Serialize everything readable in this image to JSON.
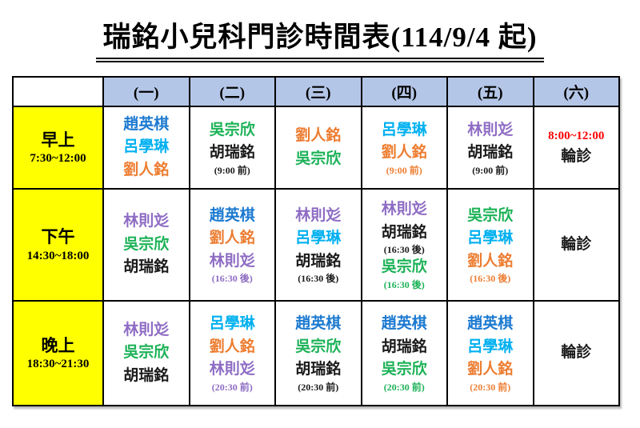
{
  "title": "瑞銘小兒科門診時間表(114/9/4 起)",
  "colors": {
    "blue": "#1B79D0",
    "cyan": "#00B0F0",
    "orange": "#ED7D31",
    "green": "#1CB257",
    "purple": "#8E6CC4",
    "black": "#1A1A1A",
    "red": "#FF0000",
    "header_bg": "#B4C6E7",
    "label_bg": "#FFFF00"
  },
  "header": {
    "days": [
      "(一)",
      "(二)",
      "(三)",
      "(四)",
      "(五)",
      "(六)"
    ]
  },
  "rows": [
    {
      "label": "早上",
      "time": "7:30~12:00",
      "cells": [
        {
          "lines": [
            {
              "text": "趙英棋",
              "color": "blue",
              "kind": "name"
            },
            {
              "text": "呂學琳",
              "color": "cyan",
              "kind": "name"
            },
            {
              "text": "劉人銘",
              "color": "orange",
              "kind": "name"
            }
          ]
        },
        {
          "lines": [
            {
              "text": "吳宗欣",
              "color": "green",
              "kind": "name"
            },
            {
              "text": "胡瑞銘",
              "color": "black",
              "kind": "name"
            },
            {
              "text": "(9:00 前)",
              "color": "black",
              "kind": "note"
            }
          ]
        },
        {
          "lines": [
            {
              "text": "劉人銘",
              "color": "orange",
              "kind": "name"
            },
            {
              "text": "吳宗欣",
              "color": "green",
              "kind": "name"
            }
          ]
        },
        {
          "lines": [
            {
              "text": "呂學琳",
              "color": "cyan",
              "kind": "name"
            },
            {
              "text": "劉人銘",
              "color": "orange",
              "kind": "name"
            },
            {
              "text": "(9:00 前)",
              "color": "orange",
              "kind": "note"
            }
          ]
        },
        {
          "lines": [
            {
              "text": "林則彣",
              "color": "purple",
              "kind": "name"
            },
            {
              "text": "胡瑞銘",
              "color": "black",
              "kind": "name"
            },
            {
              "text": "(9:00 前)",
              "color": "black",
              "kind": "note"
            }
          ]
        },
        {
          "lines": [
            {
              "text": "8:00~12:00",
              "color": "red",
              "kind": "time"
            },
            {
              "text": "輪診",
              "color": "black",
              "kind": "name"
            }
          ]
        }
      ]
    },
    {
      "label": "下午",
      "time": "14:30~18:00",
      "cells": [
        {
          "lines": [
            {
              "text": "林則彣",
              "color": "purple",
              "kind": "name"
            },
            {
              "text": "吳宗欣",
              "color": "green",
              "kind": "name"
            },
            {
              "text": "胡瑞銘",
              "color": "black",
              "kind": "name"
            }
          ]
        },
        {
          "lines": [
            {
              "text": "趙英棋",
              "color": "blue",
              "kind": "name"
            },
            {
              "text": "劉人銘",
              "color": "orange",
              "kind": "name"
            },
            {
              "text": "林則彣",
              "color": "purple",
              "kind": "name"
            },
            {
              "text": "(16:30 後)",
              "color": "purple",
              "kind": "note"
            }
          ]
        },
        {
          "lines": [
            {
              "text": "林則彣",
              "color": "purple",
              "kind": "name"
            },
            {
              "text": "呂學琳",
              "color": "cyan",
              "kind": "name"
            },
            {
              "text": "胡瑞銘",
              "color": "black",
              "kind": "name"
            },
            {
              "text": "(16:30 後)",
              "color": "black",
              "kind": "note"
            }
          ]
        },
        {
          "lines": [
            {
              "text": "林則彣",
              "color": "purple",
              "kind": "name"
            },
            {
              "text": "胡瑞銘",
              "color": "black",
              "kind": "name"
            },
            {
              "text": "(16:30 後)",
              "color": "black",
              "kind": "note"
            },
            {
              "text": "吳宗欣",
              "color": "green",
              "kind": "name"
            },
            {
              "text": "(16:30 後)",
              "color": "green",
              "kind": "note"
            }
          ]
        },
        {
          "lines": [
            {
              "text": "吳宗欣",
              "color": "green",
              "kind": "name"
            },
            {
              "text": "呂學琳",
              "color": "cyan",
              "kind": "name"
            },
            {
              "text": "劉人銘",
              "color": "orange",
              "kind": "name"
            },
            {
              "text": "(16:30 後)",
              "color": "orange",
              "kind": "note"
            }
          ]
        },
        {
          "lines": [
            {
              "text": "輪診",
              "color": "black",
              "kind": "name"
            }
          ]
        }
      ]
    },
    {
      "label": "晚上",
      "time": "18:30~21:30",
      "cells": [
        {
          "lines": [
            {
              "text": "林則彣",
              "color": "purple",
              "kind": "name"
            },
            {
              "text": "吳宗欣",
              "color": "green",
              "kind": "name"
            },
            {
              "text": "胡瑞銘",
              "color": "black",
              "kind": "name"
            }
          ]
        },
        {
          "lines": [
            {
              "text": "呂學琳",
              "color": "cyan",
              "kind": "name"
            },
            {
              "text": "劉人銘",
              "color": "orange",
              "kind": "name"
            },
            {
              "text": "林則彣",
              "color": "purple",
              "kind": "name"
            },
            {
              "text": "(20:30 前)",
              "color": "purple",
              "kind": "note"
            }
          ]
        },
        {
          "lines": [
            {
              "text": "趙英棋",
              "color": "blue",
              "kind": "name"
            },
            {
              "text": "吳宗欣",
              "color": "green",
              "kind": "name"
            },
            {
              "text": "胡瑞銘",
              "color": "black",
              "kind": "name"
            },
            {
              "text": "(20:30 前)",
              "color": "black",
              "kind": "note"
            }
          ]
        },
        {
          "lines": [
            {
              "text": "趙英棋",
              "color": "blue",
              "kind": "name"
            },
            {
              "text": "胡瑞銘",
              "color": "black",
              "kind": "name"
            },
            {
              "text": "吳宗欣",
              "color": "green",
              "kind": "name"
            },
            {
              "text": "(20:30 前)",
              "color": "green",
              "kind": "note"
            }
          ]
        },
        {
          "lines": [
            {
              "text": "趙英棋",
              "color": "blue",
              "kind": "name"
            },
            {
              "text": "呂學琳",
              "color": "cyan",
              "kind": "name"
            },
            {
              "text": "劉人銘",
              "color": "orange",
              "kind": "name"
            },
            {
              "text": "(20:30 前)",
              "color": "orange",
              "kind": "note"
            }
          ]
        },
        {
          "lines": [
            {
              "text": "輪診",
              "color": "black",
              "kind": "name"
            }
          ]
        }
      ]
    }
  ]
}
